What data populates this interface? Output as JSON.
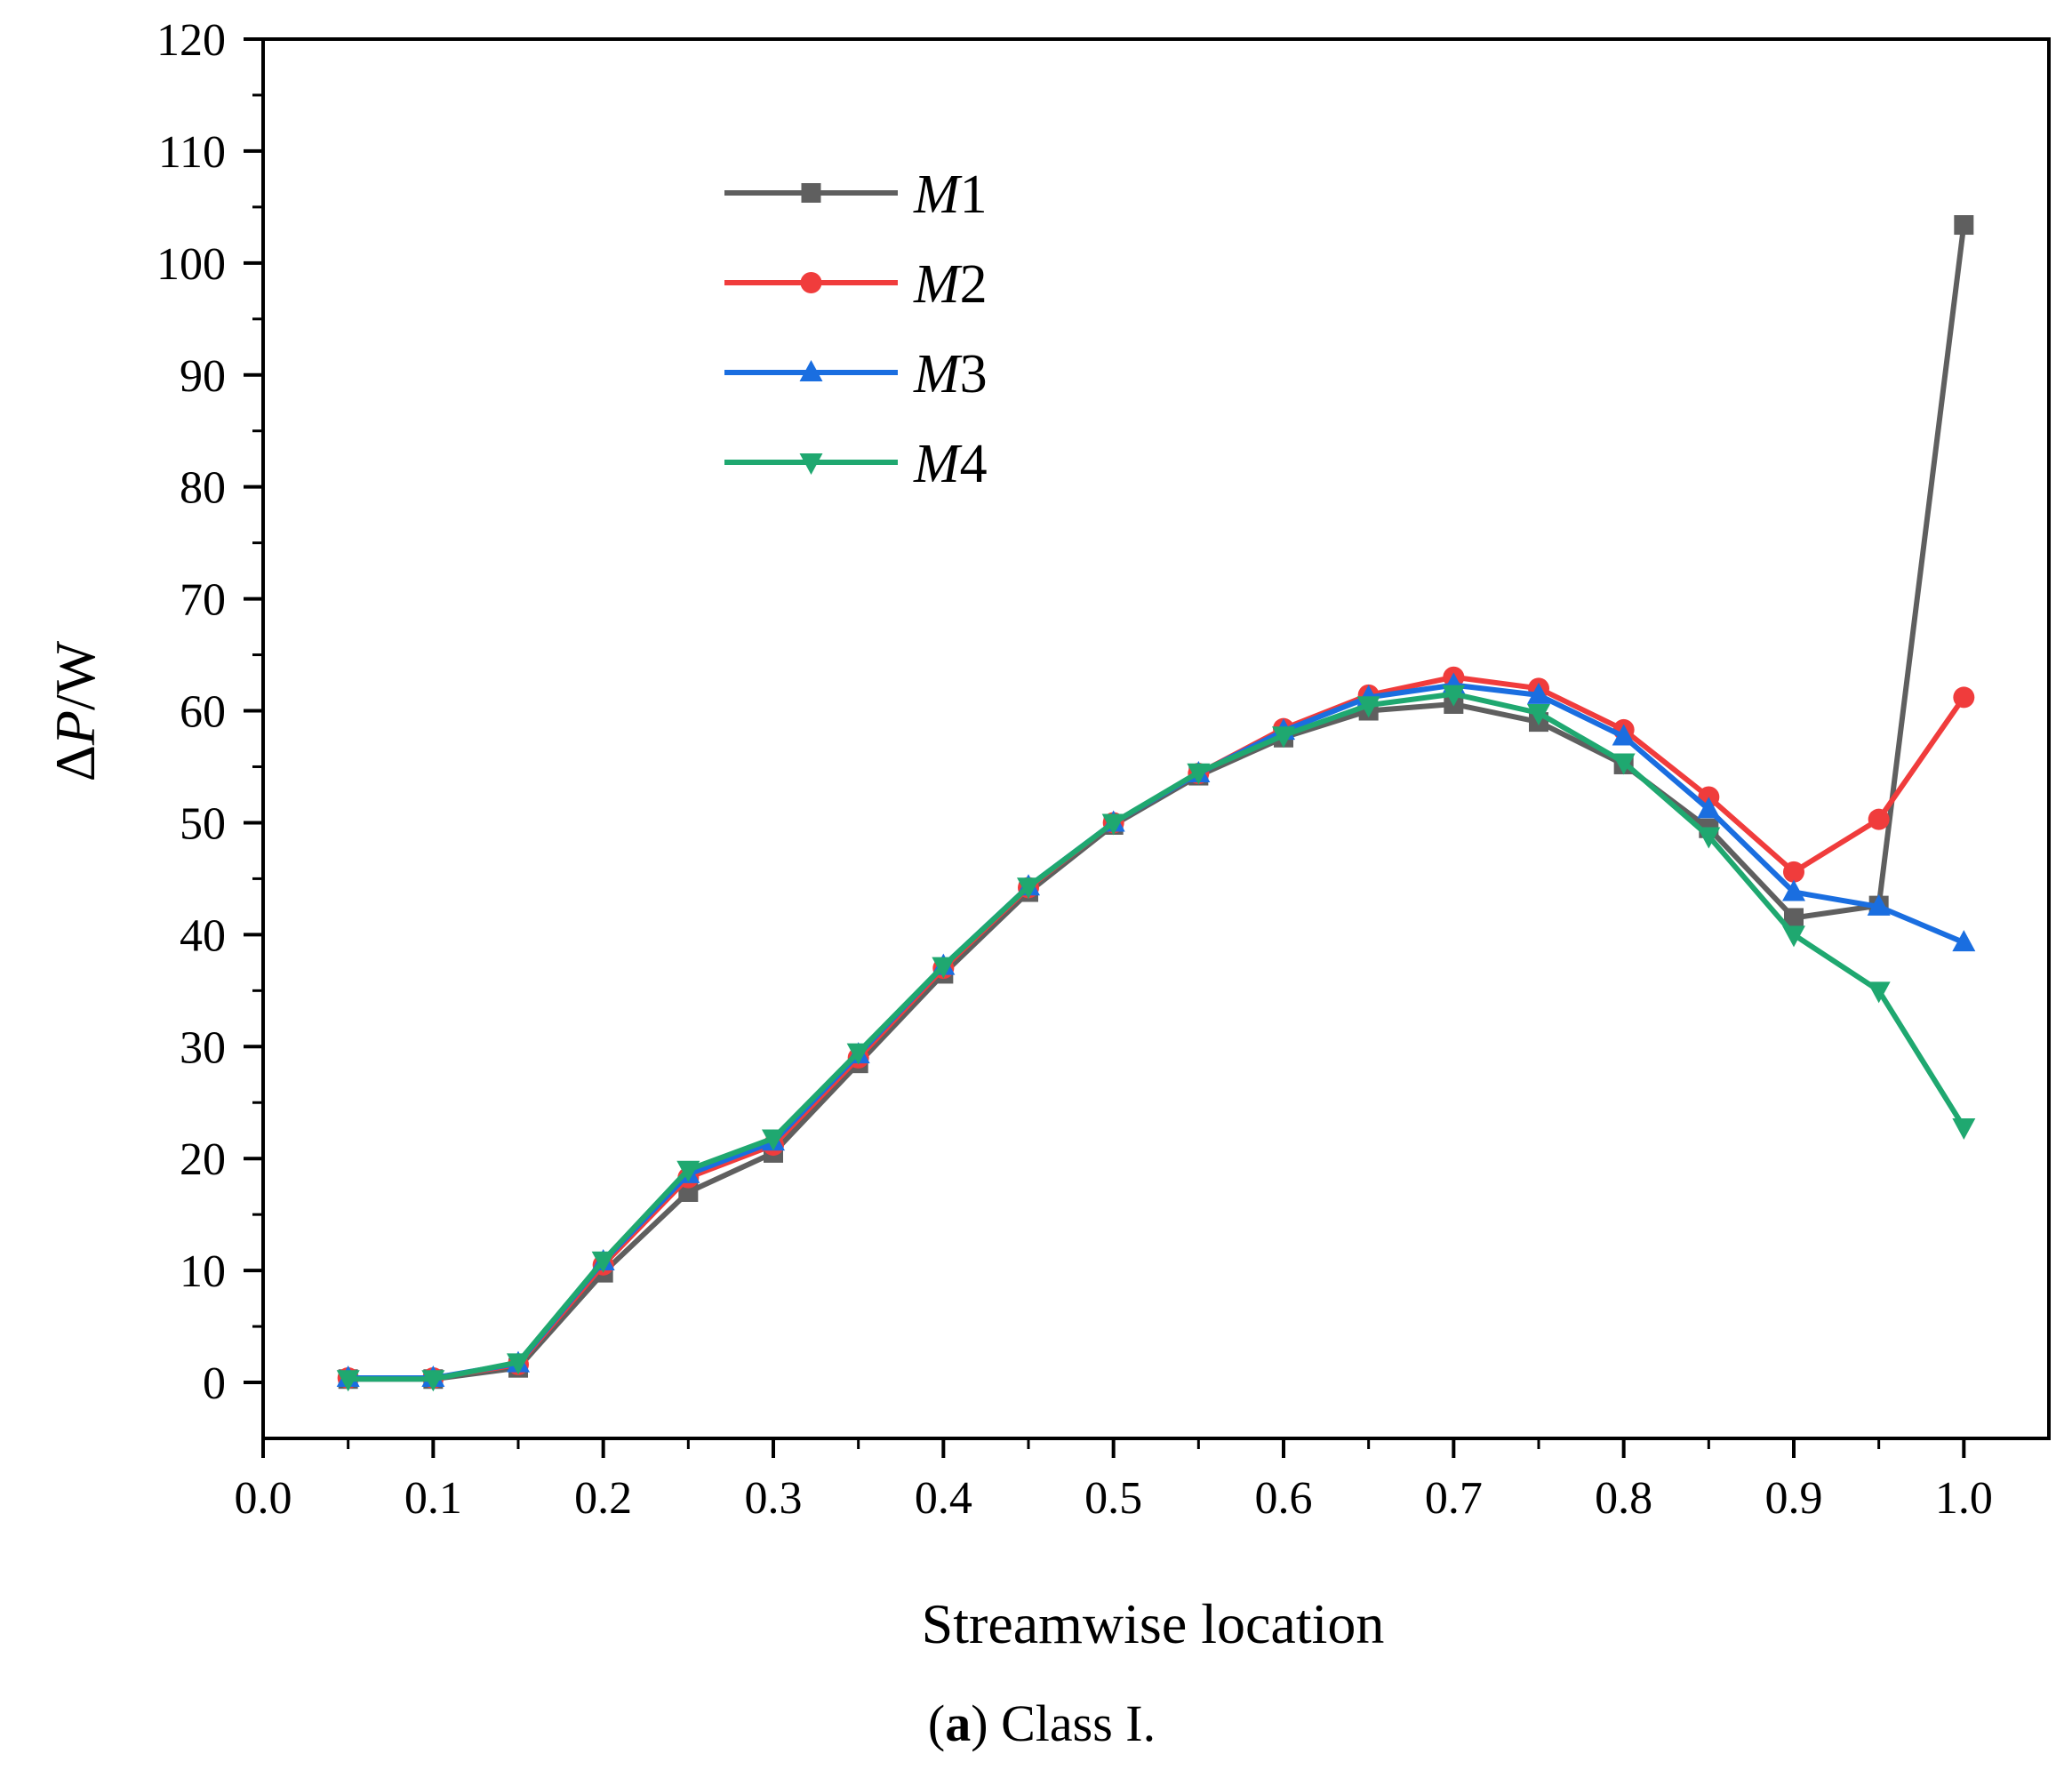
{
  "chart_data": {
    "type": "line",
    "title": "",
    "caption_bold": "a",
    "caption_rest": " Class I.",
    "xlabel": "Streamwise location",
    "ylabel_delta": "Δ",
    "ylabel_var": "P",
    "ylabel_rest": "/W",
    "xlim": [
      0.0,
      1.05
    ],
    "ylim": [
      -5,
      120
    ],
    "x_ticks": [
      0.0,
      0.1,
      0.2,
      0.3,
      0.4,
      0.5,
      0.6,
      0.7,
      0.8,
      0.9,
      1.0
    ],
    "x_tick_labels": [
      "0.0",
      "0.1",
      "0.2",
      "0.3",
      "0.4",
      "0.5",
      "0.6",
      "0.7",
      "0.8",
      "0.9",
      "1.0"
    ],
    "y_ticks": [
      0,
      10,
      20,
      30,
      40,
      50,
      60,
      70,
      80,
      90,
      100,
      110,
      120
    ],
    "y_tick_labels": [
      "0",
      "10",
      "20",
      "30",
      "40",
      "50",
      "60",
      "70",
      "80",
      "90",
      "100",
      "110",
      "120"
    ],
    "grid": false,
    "legend_position": "top-left",
    "x": [
      0.05,
      0.1,
      0.15,
      0.2,
      0.25,
      0.3,
      0.35,
      0.4,
      0.45,
      0.5,
      0.55,
      0.6,
      0.65,
      0.7,
      0.75,
      0.8,
      0.85,
      0.9,
      0.95,
      1.0
    ],
    "series": [
      {
        "name": "M1",
        "name_italic": "M",
        "name_num": "1",
        "color": "#5f5f5f",
        "marker": "square",
        "values": [
          0.3,
          0.3,
          1.3,
          9.8,
          17.0,
          20.5,
          28.5,
          36.5,
          43.8,
          49.8,
          54.2,
          57.6,
          60.0,
          60.6,
          59.0,
          55.2,
          49.5,
          41.5,
          42.6,
          103.4
        ]
      },
      {
        "name": "M2",
        "name_italic": "M",
        "name_num": "2",
        "color": "#f03c3c",
        "marker": "circle",
        "values": [
          0.4,
          0.4,
          1.6,
          10.5,
          18.3,
          21.2,
          29.0,
          37.0,
          44.2,
          50.0,
          54.4,
          58.4,
          61.4,
          63.0,
          62.0,
          58.3,
          52.3,
          45.6,
          50.3,
          61.2
        ]
      },
      {
        "name": "M3",
        "name_italic": "M",
        "name_num": "3",
        "color": "#1a6ee0",
        "marker": "triangle-up",
        "values": [
          0.4,
          0.4,
          1.7,
          10.8,
          18.6,
          21.5,
          29.3,
          37.2,
          44.3,
          50.0,
          54.4,
          58.2,
          61.2,
          62.3,
          61.4,
          57.7,
          51.2,
          43.8,
          42.5,
          39.3
        ]
      },
      {
        "name": "M4",
        "name_italic": "M",
        "name_num": "4",
        "color": "#1fa870",
        "marker": "triangle-down",
        "values": [
          0.3,
          0.3,
          1.8,
          10.9,
          19.0,
          21.8,
          29.5,
          37.2,
          44.3,
          50.0,
          54.5,
          57.8,
          60.5,
          61.5,
          59.8,
          55.4,
          48.8,
          40.0,
          35.0,
          22.8
        ]
      }
    ]
  }
}
